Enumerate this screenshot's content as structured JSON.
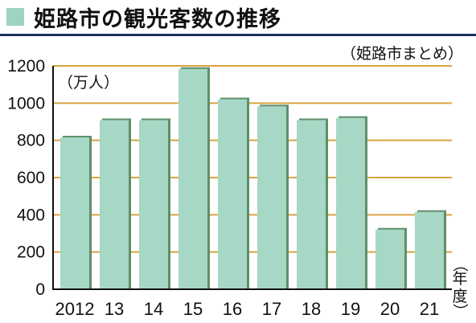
{
  "header": {
    "title": "姫路市の観光客数の推移",
    "source": "（姫路市まとめ）"
  },
  "colors": {
    "bar_fill": "#a7d7c5",
    "bar_shadow": "#5e8f6b",
    "grid": "#d9a441",
    "title_marker": "#9fd3bf",
    "title_rule": "#1d2f5c"
  },
  "chart_data": {
    "type": "bar",
    "y_unit_label": "（万人）",
    "x_unit_label": "（年度）",
    "categories": [
      "2012",
      "13",
      "14",
      "15",
      "16",
      "17",
      "18",
      "19",
      "20",
      "21"
    ],
    "values": [
      820,
      913,
      913,
      1188,
      1025,
      987,
      913,
      925,
      325,
      420
    ],
    "ylim": [
      0,
      1200
    ],
    "y_ticks": [
      "0",
      "200",
      "400",
      "600",
      "800",
      "1000",
      "1200"
    ],
    "grid": true,
    "legend": "none"
  }
}
